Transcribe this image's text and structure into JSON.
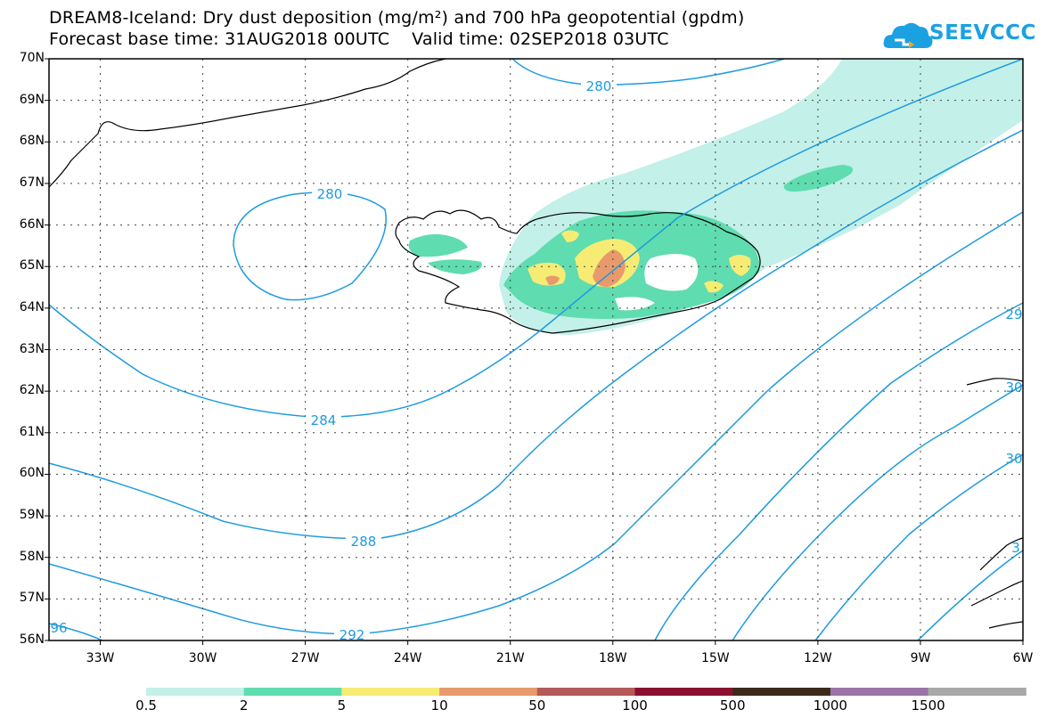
{
  "title": {
    "line1": "DREAM8-Iceland: Dry dust deposition (mg/m²) and 700 hPa geopotential (gpdm)",
    "line2": "Forecast base time: 31AUG2018 00UTC    Valid time: 02SEP2018 03UTC"
  },
  "logo": {
    "text": "SEEVCCC",
    "icon": "cloud-logo-icon",
    "color": "#1ba1e2"
  },
  "axes": {
    "lat_labels": [
      "70N",
      "69N",
      "68N",
      "67N",
      "66N",
      "65N",
      "64N",
      "63N",
      "62N",
      "61N",
      "60N",
      "59N",
      "58N",
      "57N",
      "56N"
    ],
    "lon_labels": [
      "33W",
      "30W",
      "27W",
      "24W",
      "21W",
      "18W",
      "15W",
      "12W",
      "9W",
      "6W"
    ]
  },
  "contours": {
    "color": "#1e9be0",
    "labels": [
      "280",
      "280",
      "284",
      "288",
      "292",
      "96",
      "29",
      "30",
      "30",
      "3"
    ]
  },
  "legend": {
    "values": [
      "0.5",
      "2",
      "5",
      "10",
      "50",
      "100",
      "500",
      "1000",
      "1500"
    ],
    "colors": [
      "#c3f0e8",
      "#5fdcb0",
      "#f6ec74",
      "#e89a6c",
      "#b45a58",
      "#8a1030",
      "#3b2a1a",
      "#9a74a6",
      "#a8a8a8"
    ]
  }
}
